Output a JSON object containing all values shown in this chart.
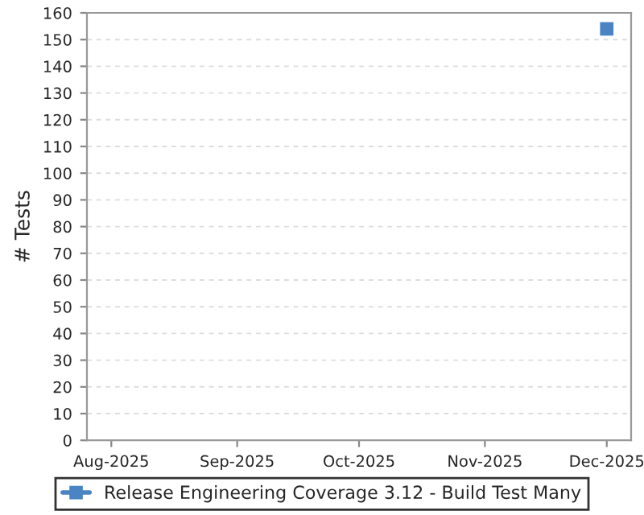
{
  "chart_data": {
    "type": "line",
    "ylabel": "# Tests",
    "x": [
      "2025-12-01"
    ],
    "series": [
      {
        "name": "Release Engineering Coverage 3.12 - Build Test Many",
        "color": "#4a84c2",
        "values": [
          154
        ]
      }
    ],
    "marker": "square",
    "xlim": [
      "2025-07-26",
      "2025-12-07"
    ],
    "xticks": [
      {
        "value": "2025-08-01",
        "label": "Aug-2025"
      },
      {
        "value": "2025-09-01",
        "label": "Sep-2025"
      },
      {
        "value": "2025-10-01",
        "label": "Oct-2025"
      },
      {
        "value": "2025-11-01",
        "label": "Nov-2025"
      },
      {
        "value": "2025-12-01",
        "label": "Dec-2025"
      }
    ],
    "ylim": [
      0,
      160
    ],
    "yticks": [
      0,
      10,
      20,
      30,
      40,
      50,
      60,
      70,
      80,
      90,
      100,
      110,
      120,
      130,
      140,
      150,
      160
    ],
    "grid": "y",
    "legend": "bottom"
  }
}
